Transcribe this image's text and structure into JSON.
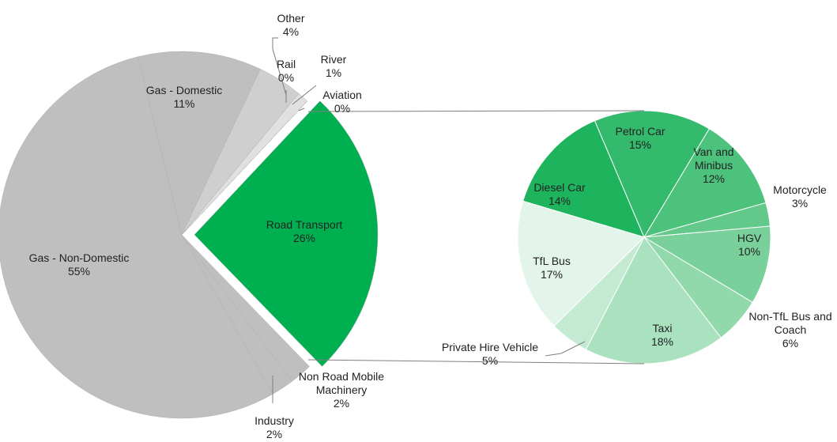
{
  "chart_data": [
    {
      "type": "pie",
      "categories": [
        "Road Transport",
        "Non Road Mobile Machinery",
        "Industry",
        "Gas - Non-Domestic",
        "Gas - Domestic",
        "Other",
        "Rail",
        "River",
        "Aviation"
      ],
      "values": [
        26,
        2,
        2,
        55,
        11,
        4,
        0,
        1,
        0
      ],
      "value_labels": [
        "26%",
        "2%",
        "2%",
        "55%",
        "11%",
        "4%",
        "0%",
        "1%",
        "0%"
      ],
      "colors": [
        "#00b050",
        "#bfbfbf",
        "#bfbfbf",
        "#bfbfbf",
        "#bfbfbf",
        "#cfcfcf",
        "#d9d9d9",
        "#e0e0e0",
        "#e6e6e6"
      ]
    },
    {
      "type": "pie",
      "categories": [
        "Diesel Car",
        "Petrol Car",
        "Van and Minibus",
        "Motorcycle",
        "HGV",
        "Non-TfL Bus and Coach",
        "Taxi",
        "Private Hire Vehicle",
        "TfL Bus"
      ],
      "values": [
        14,
        15,
        12,
        3,
        10,
        6,
        18,
        5,
        17
      ],
      "value_labels": [
        "14%",
        "15%",
        "12%",
        "3%",
        "10%",
        "6%",
        "18%",
        "5%",
        "17%"
      ],
      "colors": [
        "#1eb45e",
        "#33ba6c",
        "#4cc27c",
        "#62c98a",
        "#79d09a",
        "#91d8ab",
        "#aae1bf",
        "#c4ead3",
        "#e3f5ea"
      ]
    }
  ]
}
